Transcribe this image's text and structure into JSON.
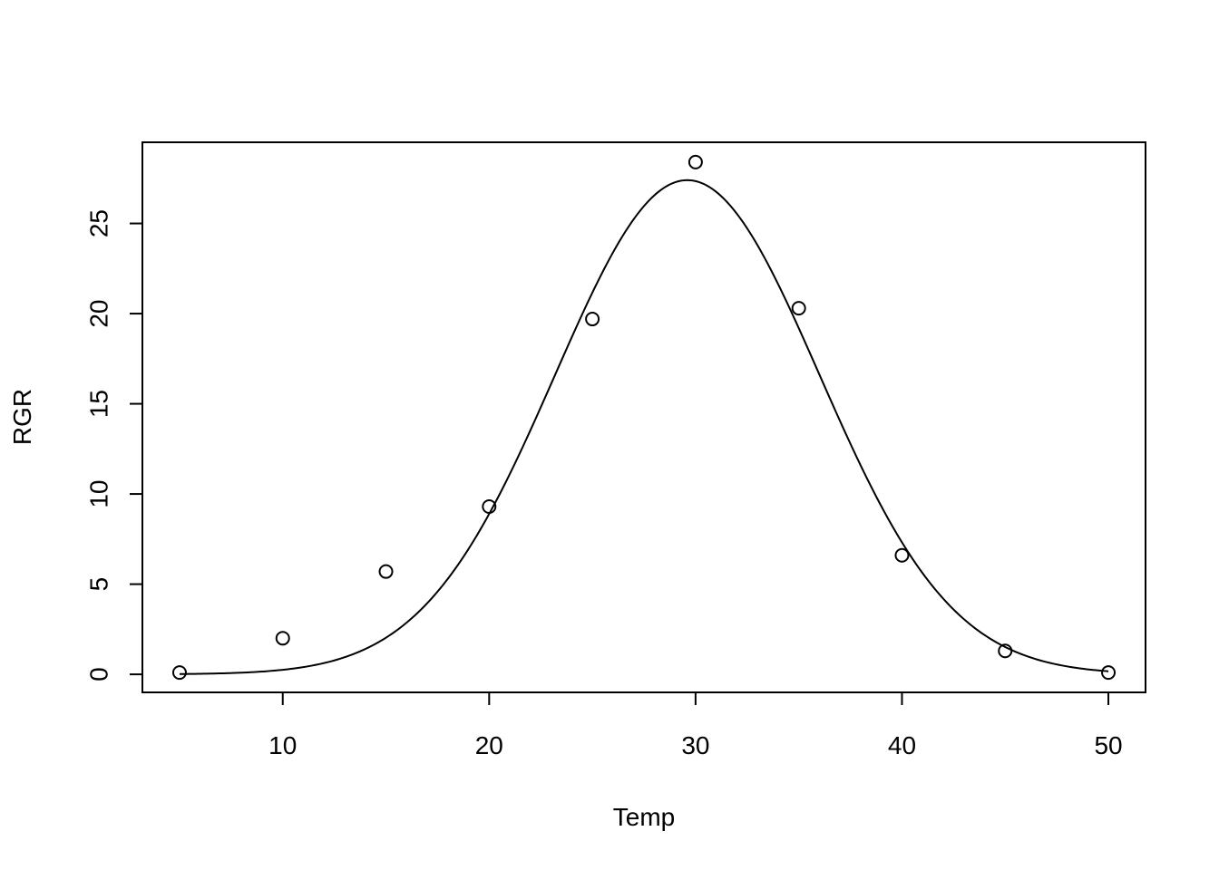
{
  "chart_data": {
    "type": "scatter",
    "title": "",
    "xlabel": "Temp",
    "ylabel": "RGR",
    "xlim": [
      3.2,
      51.8
    ],
    "ylim": [
      -1.0,
      29.5
    ],
    "x_ticks": [
      10,
      20,
      30,
      40,
      50
    ],
    "y_ticks": [
      0,
      5,
      10,
      15,
      20,
      25
    ],
    "grid": false,
    "points": {
      "x": [
        5,
        10,
        15,
        20,
        25,
        30,
        35,
        40,
        45,
        50
      ],
      "y": [
        0.1,
        2.0,
        5.7,
        9.3,
        19.7,
        28.4,
        20.3,
        6.6,
        1.3,
        0.1
      ]
    },
    "fitted_curve": {
      "form": "gaussian",
      "peak": 27.4,
      "center": 29.6,
      "sd": 6.4,
      "x_range": [
        5,
        50
      ]
    }
  }
}
